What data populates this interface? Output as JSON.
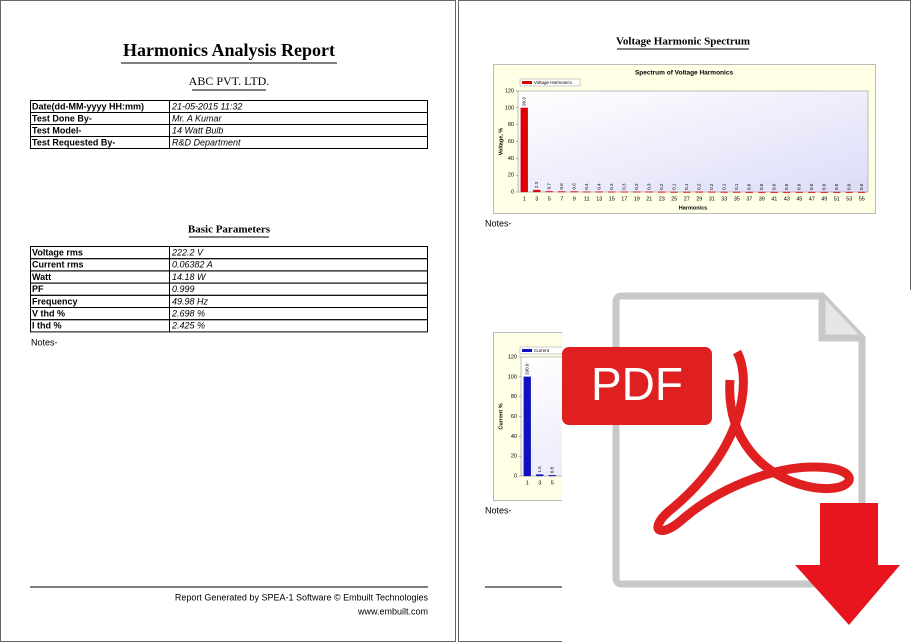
{
  "report": {
    "title": "Harmonics Analysis Report",
    "company": "ABC PVT. LTD.",
    "test_info": [
      [
        "Date(dd-MM-yyyy HH:mm)",
        "21-05-2015 11:32"
      ],
      [
        "Test Done By-",
        "Mr. A Kumar"
      ],
      [
        "Test Model-",
        "14 Watt Bulb"
      ],
      [
        "Test Requested By-",
        "R&D Department"
      ]
    ],
    "basic_parameters_title": "Basic Parameters",
    "basic_parameters": [
      [
        "Voltage rms",
        "222.2 V"
      ],
      [
        "Current rms",
        "0.06382 A"
      ],
      [
        "Watt",
        "14.18 W"
      ],
      [
        "PF",
        "0.999"
      ],
      [
        "Frequency",
        "49.98 Hz"
      ],
      [
        "V thd %",
        "2.698 %"
      ],
      [
        "I thd %",
        "2.425 %"
      ]
    ],
    "notes": "Notes-",
    "footer": "Report Generated by SPEA-1 Software  © Embuilt Technologies",
    "website": "www.embuilt.com"
  },
  "spectrum_page": {
    "heading": "Voltage Harmonic Spectrum",
    "notes_1": "Notes-",
    "notes_2": "Notes-"
  },
  "icon": {
    "label": "PDF"
  },
  "chart_data": [
    {
      "type": "bar",
      "title": "Spectrum of Voltage Harmonics",
      "xlabel": "Harmonics",
      "ylabel": "Voltage, %",
      "categories": [
        1,
        3,
        5,
        7,
        9,
        11,
        13,
        15,
        17,
        19,
        21,
        23,
        25,
        27,
        29,
        31,
        33,
        35,
        37,
        39,
        41,
        43,
        45,
        47,
        49,
        51,
        53,
        55
      ],
      "series": [
        {
          "name": "Voltage Harmonics",
          "color": "#dd0000",
          "values": [
            99.9,
            2.3,
            0.7,
            0.6,
            0.6,
            0.4,
            0.4,
            0.3,
            0.3,
            0.3,
            0.3,
            0.2,
            0.1,
            0.1,
            0.2,
            0.2,
            0.1,
            0.1,
            0,
            0,
            0,
            0,
            0,
            0,
            0,
            0,
            0,
            0
          ],
          "value_labels": [
            "99.9",
            "2.3",
            "0.7",
            "0.6",
            "0.6",
            "0.4",
            "0.4",
            "0.3",
            "0.3",
            "0.3",
            "0.3",
            "0.2",
            "0.1",
            "0.1",
            "0.2",
            "0.2",
            "0.1",
            "0.1",
            "0.0",
            "0.0",
            "0.0",
            "0.0",
            "0.0",
            "0.0",
            "0.0",
            "0.0",
            "0.0",
            "0.0"
          ]
        }
      ],
      "ylim": [
        0,
        120
      ],
      "yticks": [
        0,
        20,
        40,
        60,
        80,
        100,
        120
      ]
    },
    {
      "type": "bar",
      "ylabel": "Current %",
      "categories": [
        1,
        3,
        5
      ],
      "series": [
        {
          "name": "Current",
          "color": "#1010c0",
          "values": [
            100,
            1.5,
            0.8
          ],
          "value_labels": [
            "100.0",
            "1.5",
            "0.8"
          ]
        }
      ],
      "ylim": [
        0,
        120
      ],
      "yticks": [
        0,
        20,
        40,
        60,
        80,
        100,
        120
      ]
    }
  ]
}
